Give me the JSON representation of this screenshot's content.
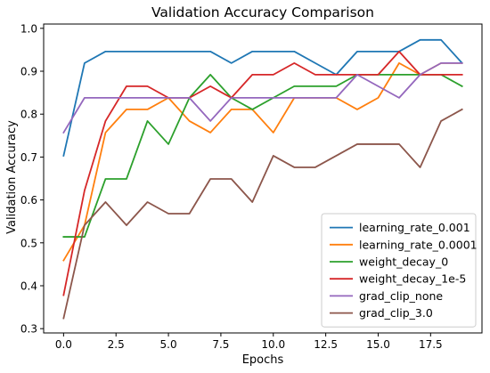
{
  "chart_data": {
    "type": "line",
    "title": "Validation Accuracy Comparison",
    "xlabel": "Epochs",
    "ylabel": "Validation Accuracy",
    "xlim": [
      -0.95,
      19.95
    ],
    "ylim": [
      0.29,
      1.01
    ],
    "xticks": [
      0.0,
      2.5,
      5.0,
      7.5,
      10.0,
      12.5,
      15.0,
      17.5
    ],
    "xtick_labels": [
      "0.0",
      "2.5",
      "5.0",
      "7.5",
      "10.0",
      "12.5",
      "15.0",
      "17.5"
    ],
    "yticks": [
      0.3,
      0.4,
      0.5,
      0.6,
      0.7,
      0.8,
      0.9,
      1.0
    ],
    "ytick_labels": [
      "0.3",
      "0.4",
      "0.5",
      "0.6",
      "0.7",
      "0.8",
      "0.9",
      "1.0"
    ],
    "grid": false,
    "legend_position": "lower right",
    "x": [
      0,
      1,
      2,
      3,
      4,
      5,
      6,
      7,
      8,
      9,
      10,
      11,
      12,
      13,
      14,
      15,
      16,
      17,
      18,
      19
    ],
    "series": [
      {
        "name": "learning_rate_0.001",
        "color": "#1f77b4",
        "values": [
          0.703,
          0.919,
          0.946,
          0.946,
          0.946,
          0.946,
          0.946,
          0.946,
          0.919,
          0.946,
          0.946,
          0.946,
          0.919,
          0.892,
          0.946,
          0.946,
          0.946,
          0.973,
          0.973,
          0.919
        ]
      },
      {
        "name": "learning_rate_0.0001",
        "color": "#ff7f0e",
        "values": [
          0.459,
          0.541,
          0.757,
          0.811,
          0.811,
          0.838,
          0.784,
          0.757,
          0.811,
          0.811,
          0.757,
          0.838,
          0.838,
          0.838,
          0.811,
          0.838,
          0.919,
          0.892,
          0.919,
          0.919
        ]
      },
      {
        "name": "weight_decay_0",
        "color": "#2ca02c",
        "values": [
          0.514,
          0.514,
          0.649,
          0.649,
          0.784,
          0.73,
          0.838,
          0.892,
          0.838,
          0.811,
          0.838,
          0.865,
          0.865,
          0.865,
          0.892,
          0.892,
          0.892,
          0.892,
          0.892,
          0.865
        ]
      },
      {
        "name": "weight_decay_1e-5",
        "color": "#d62728",
        "values": [
          0.378,
          0.622,
          0.784,
          0.865,
          0.865,
          0.838,
          0.838,
          0.865,
          0.838,
          0.892,
          0.892,
          0.919,
          0.892,
          0.892,
          0.892,
          0.892,
          0.946,
          0.892,
          0.892,
          0.892
        ]
      },
      {
        "name": "grad_clip_none",
        "color": "#9467bd",
        "values": [
          0.757,
          0.838,
          0.838,
          0.838,
          0.838,
          0.838,
          0.838,
          0.784,
          0.838,
          0.838,
          0.838,
          0.838,
          0.838,
          0.838,
          0.892,
          0.865,
          0.838,
          0.892,
          0.919,
          0.919
        ]
      },
      {
        "name": "grad_clip_3.0",
        "color": "#8c564b",
        "values": [
          0.324,
          0.541,
          0.595,
          0.541,
          0.595,
          0.568,
          0.568,
          0.649,
          0.649,
          0.595,
          0.703,
          0.676,
          0.676,
          0.703,
          0.73,
          0.73,
          0.73,
          0.676,
          0.784,
          0.811
        ]
      }
    ]
  }
}
